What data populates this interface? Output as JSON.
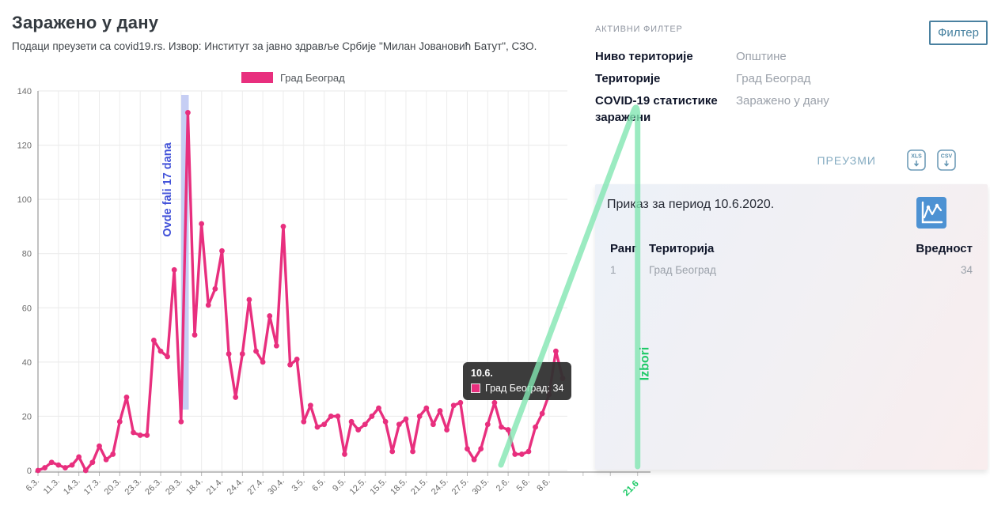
{
  "header": {
    "title": "Заражено у дану",
    "subtitle": "Подаци преузети са covid19.rs. Извор: Институт за јавно здравље Србије \"Милан Јовановић Батут\", СЗО."
  },
  "chart_data": {
    "type": "line",
    "title": "Заражено у дану",
    "series": [
      {
        "name": "Град Београд",
        "color": "#e82f7e"
      }
    ],
    "series_name": "Град Београд",
    "labels": [
      "6.3.",
      "11.3.",
      "14.3.",
      "17.3.",
      "20.3.",
      "23.3.",
      "26.3.",
      "29.3.",
      "18.4.",
      "21.4.",
      "24.4.",
      "27.4.",
      "30.4.",
      "3.5.",
      "6.5.",
      "9.5.",
      "12.5.",
      "15.5.",
      "18.5.",
      "21.5.",
      "24.5.",
      "27.5.",
      "30.5.",
      "2.6.",
      "5.6.",
      "8.6."
    ],
    "label_every": 3,
    "values": [
      0,
      1,
      3,
      2,
      1,
      2,
      5,
      0,
      3,
      9,
      4,
      6,
      18,
      27,
      14,
      13,
      13,
      48,
      44,
      42,
      74,
      18,
      132,
      50,
      91,
      61,
      67,
      81,
      43,
      27,
      43,
      63,
      44,
      40,
      57,
      46,
      90,
      39,
      41,
      18,
      24,
      16,
      17,
      20,
      20,
      6,
      18,
      15,
      17,
      20,
      23,
      18,
      7,
      17,
      19,
      7,
      20,
      23,
      17,
      22,
      15,
      24,
      25,
      8,
      4,
      8,
      17,
      25,
      16,
      15,
      6,
      6,
      7,
      16,
      21,
      28,
      44,
      34
    ],
    "ylim": [
      0,
      140
    ],
    "ytick_step": 20,
    "grid": true,
    "legend_position": "top",
    "annotations": {
      "missing_band": {
        "label": "Ovde fali 17 dana",
        "text_color": "#4353d9",
        "band_color": "#bcc6f2"
      },
      "election": {
        "label": "Izbori",
        "tick_label": "21.6",
        "text_color": "#1fca68",
        "line_color": "#82e6b2"
      }
    },
    "tooltip": {
      "title": "10.6.",
      "text": "Град Београд: 34",
      "value": 34
    }
  },
  "filter_panel": {
    "caption": "АКТИВНИ ФИЛТЕР",
    "button_label": "Филтер",
    "rows": [
      {
        "label": "Ниво територије",
        "value": "Општине"
      },
      {
        "label": "Територије",
        "value": "Град Београд"
      },
      {
        "label": "COVID-19 статистике заражени",
        "value": "Заражено у дану"
      }
    ]
  },
  "download": {
    "link_label": "ПРЕУЗМИ",
    "xls_label": "XLS",
    "csv_label": "CSV"
  },
  "result_card": {
    "title": "Приказ за период 10.6.2020.",
    "table": {
      "headers": {
        "rank": "Ранг",
        "territory": "Територија",
        "value": "Вредност"
      },
      "rows": [
        {
          "rank": "1",
          "territory": "Град Београд",
          "value": "34"
        }
      ]
    }
  }
}
